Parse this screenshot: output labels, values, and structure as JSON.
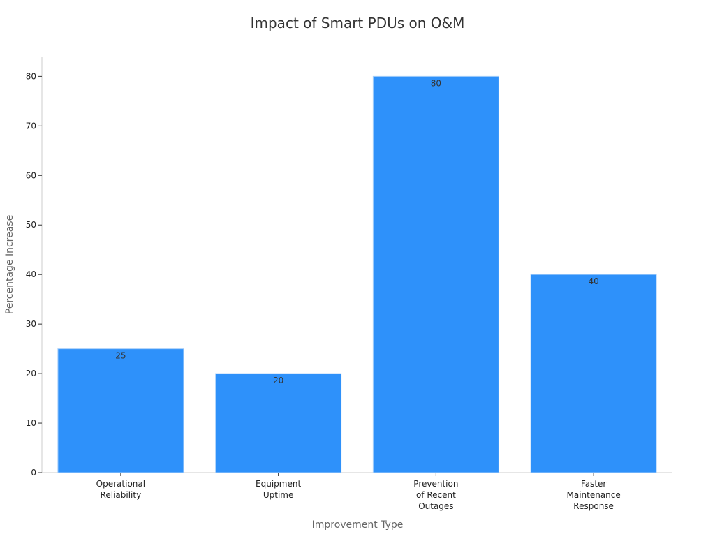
{
  "chart_data": {
    "type": "bar",
    "title": "Impact of Smart PDUs on O&M",
    "xlabel": "Improvement Type",
    "ylabel": "Percentage Increase",
    "categories": [
      [
        "Operational",
        "Reliability"
      ],
      [
        "Equipment",
        "Uptime"
      ],
      [
        "Prevention",
        "of Recent",
        "Outages"
      ],
      [
        "Faster",
        "Maintenance",
        "Response"
      ]
    ],
    "values": [
      25,
      20,
      80,
      40
    ],
    "data_labels": [
      "25",
      "20",
      "80",
      "40"
    ],
    "ylim": [
      0,
      84
    ],
    "yticks": [
      0,
      10,
      20,
      30,
      40,
      50,
      60,
      70,
      80
    ],
    "grid": false,
    "legend": "none",
    "colors": {
      "bar": "#2E91FA",
      "bar_edge": "#A8CFFA",
      "text": "#333333",
      "axis": "#CCCCCC",
      "label": "#666666"
    }
  }
}
